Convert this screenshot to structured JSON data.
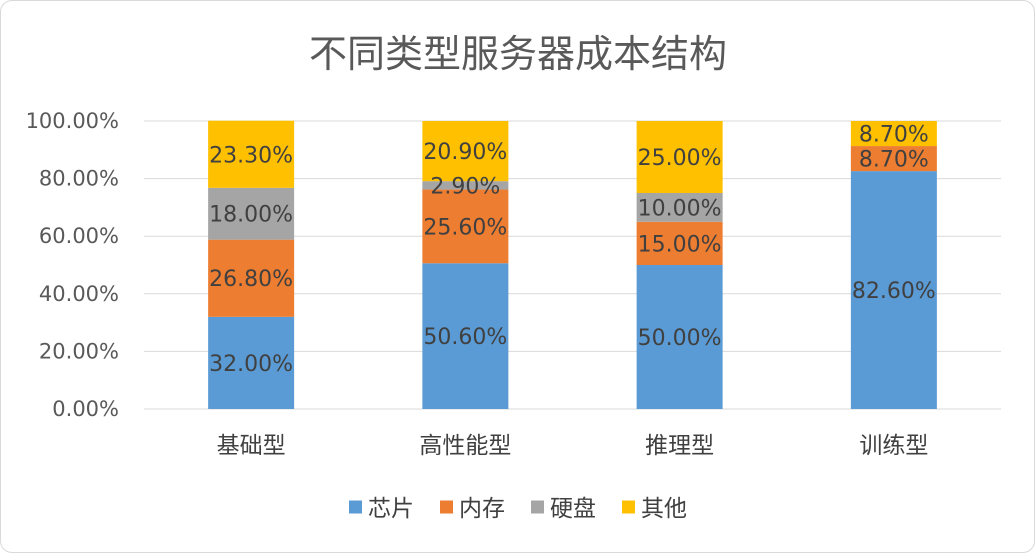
{
  "chart_data": {
    "type": "bar",
    "stacked": true,
    "title": "不同类型服务器成本结构",
    "xlabel": "",
    "ylabel": "",
    "ylim": [
      0,
      100
    ],
    "yticks": [
      0,
      20,
      40,
      60,
      80,
      100
    ],
    "ytick_labels": [
      "0.00%",
      "20.00%",
      "40.00%",
      "60.00%",
      "80.00%",
      "100.00%"
    ],
    "grid": true,
    "legend_position": "bottom",
    "categories": [
      "基础型",
      "高性能型",
      "推理型",
      "训练型"
    ],
    "series": [
      {
        "name": "芯片",
        "color": "#5b9bd5",
        "values": [
          32.0,
          50.6,
          50.0,
          82.6
        ],
        "labels": [
          "32.00%",
          "50.60%",
          "50.00%",
          "82.60%"
        ]
      },
      {
        "name": "内存",
        "color": "#ed7d31",
        "values": [
          26.8,
          25.6,
          15.0,
          8.7
        ],
        "labels": [
          "26.80%",
          "25.60%",
          "15.00%",
          "8.70%"
        ]
      },
      {
        "name": "硬盘",
        "color": "#a5a5a5",
        "values": [
          18.0,
          2.9,
          10.0,
          0
        ],
        "labels": [
          "18.00%",
          "2.90%",
          "10.00%",
          ""
        ]
      },
      {
        "name": "其他",
        "color": "#ffc000",
        "values": [
          23.3,
          20.9,
          25.0,
          8.7
        ],
        "labels": [
          "23.30%",
          "20.90%",
          "25.00%",
          "8.70%"
        ]
      }
    ]
  }
}
